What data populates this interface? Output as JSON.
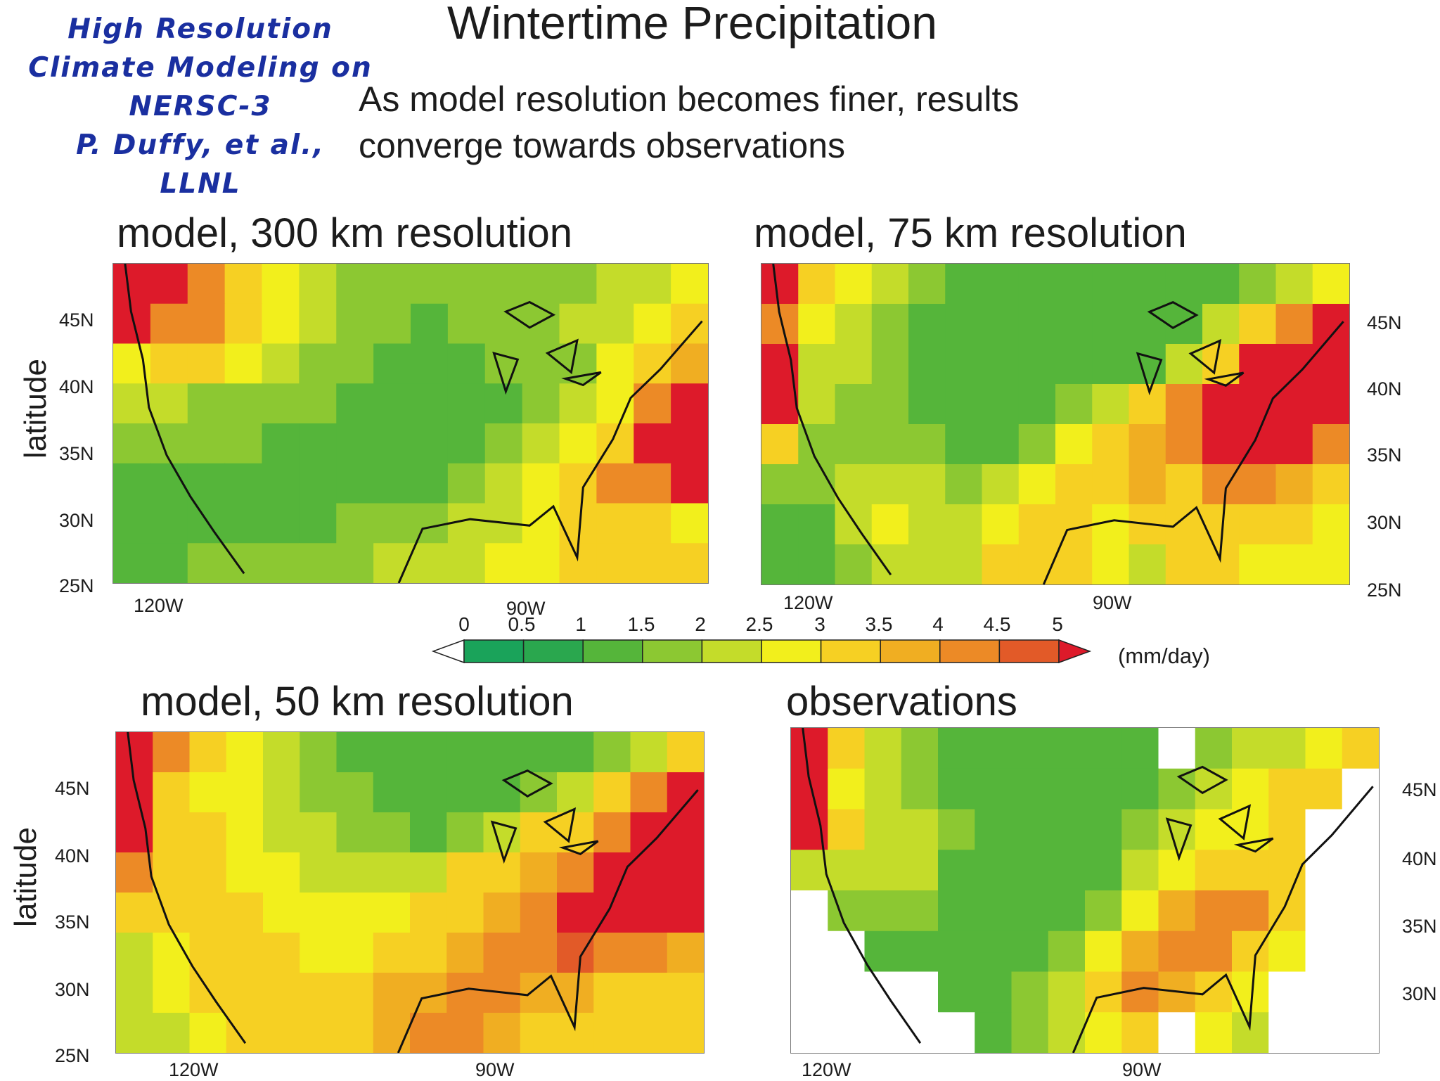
{
  "credit": {
    "lines": [
      "High Resolution",
      "Climate Modeling on",
      "NERSC-3",
      "P. Duffy, et al.,",
      "LLNL"
    ]
  },
  "title": "Wintertime Precipitation",
  "subtitle": {
    "line1": "As model resolution becomes finer, results",
    "line2": "converge towards observations"
  },
  "panels": [
    {
      "title": "model, 300 km resolution",
      "ylabel": "latitude",
      "lat_ticks": [
        "45N",
        "40N",
        "35N",
        "30N",
        "25N"
      ],
      "lon_ticks": [
        "120W",
        "90W"
      ]
    },
    {
      "title": "model, 75 km resolution",
      "ylabel": "",
      "lat_ticks": [
        "45N",
        "40N",
        "35N",
        "30N",
        "25N"
      ],
      "lon_ticks": [
        "120W",
        "90W"
      ]
    },
    {
      "title": "model, 50 km resolution",
      "ylabel": "latitude",
      "lat_ticks": [
        "45N",
        "40N",
        "35N",
        "30N",
        "25N"
      ],
      "lon_ticks": [
        "120W",
        "90W"
      ]
    },
    {
      "title": "observations",
      "ylabel": "",
      "lat_ticks": [
        "45N",
        "40N",
        "35N",
        "30N"
      ],
      "lon_ticks": [
        "120W",
        "90W"
      ]
    }
  ],
  "colorbar": {
    "units": "(mm/day)",
    "labels": [
      "0",
      "0.5",
      "1",
      "1.5",
      "2",
      "2.5",
      "3",
      "3.5",
      "4",
      "4.5",
      "5"
    ],
    "colors": [
      "#1aa35a",
      "#2aa74e",
      "#55b53a",
      "#8cc832",
      "#c4dc2a",
      "#f2ef1c",
      "#f6d023",
      "#f0ae22",
      "#ec8a26",
      "#e25a28",
      "#dd1a2a"
    ],
    "under_color": "#ffffff",
    "over_color": "#dd1a2a"
  },
  "chart_data": [
    {
      "type": "heatmap",
      "title": "model, 300 km resolution",
      "ylabel": "latitude",
      "xlim": [
        "125W",
        "75W"
      ],
      "ylim": [
        "25N",
        "49N"
      ],
      "x_ticks": [
        "120W",
        "90W"
      ],
      "y_ticks": [
        "45N",
        "40N",
        "35N",
        "30N",
        "25N"
      ],
      "units": "mm/day",
      "resolution_km": 300,
      "cells": [
        [
          5,
          5,
          4,
          3,
          2.5,
          2,
          1.5,
          1.5,
          1.5,
          1.5,
          1.5,
          1.5,
          1.5,
          2,
          2,
          2.5
        ],
        [
          5,
          4,
          4,
          3,
          2.5,
          2,
          1.5,
          1.5,
          1,
          1.5,
          1.5,
          1.5,
          2,
          2,
          2.5,
          3
        ],
        [
          2.5,
          3,
          3,
          2.5,
          2,
          1.5,
          1.5,
          1,
          1,
          1,
          1.5,
          1.5,
          1.5,
          2.5,
          3,
          3.5
        ],
        [
          2,
          2,
          1.5,
          1.5,
          1.5,
          1.5,
          1,
          1,
          1,
          1,
          1,
          1.5,
          2,
          2.5,
          4,
          5
        ],
        [
          1.5,
          1.5,
          1.5,
          1.5,
          1,
          1,
          1,
          1,
          1,
          1,
          1.5,
          2,
          2.5,
          3,
          5,
          5
        ],
        [
          1,
          1,
          1,
          1,
          1,
          1,
          1,
          1,
          1,
          1.5,
          2,
          2.5,
          3,
          4,
          4,
          5
        ],
        [
          1,
          1,
          1,
          1,
          1,
          1,
          1.5,
          1.5,
          1.5,
          2,
          2,
          2.5,
          3,
          3,
          3,
          2.5
        ],
        [
          1,
          1,
          1.5,
          1.5,
          1.5,
          1.5,
          1.5,
          2,
          2,
          2,
          2.5,
          2.5,
          3,
          3,
          3,
          3
        ]
      ]
    },
    {
      "type": "heatmap",
      "title": "model, 75 km resolution",
      "xlim": [
        "125W",
        "75W"
      ],
      "ylim": [
        "25N",
        "49N"
      ],
      "x_ticks": [
        "120W",
        "90W"
      ],
      "y_ticks": [
        "45N",
        "40N",
        "35N",
        "30N",
        "25N"
      ],
      "units": "mm/day",
      "resolution_km": 75,
      "cells": [
        [
          5,
          3,
          2.5,
          2,
          1.5,
          1,
          1,
          1,
          1,
          1,
          1,
          1,
          1,
          1.5,
          2,
          2.5
        ],
        [
          4,
          2.5,
          2,
          1.5,
          1,
          1,
          1,
          1,
          1,
          1,
          1,
          1,
          2,
          3,
          4,
          5
        ],
        [
          5,
          2,
          2,
          1.5,
          1,
          1,
          1,
          1,
          1,
          1,
          1,
          2,
          3,
          5,
          5,
          5
        ],
        [
          5,
          2,
          1.5,
          1.5,
          1,
          1,
          1,
          1,
          1.5,
          2,
          3,
          4,
          5,
          5,
          5,
          5
        ],
        [
          3,
          1.5,
          1.5,
          1.5,
          1.5,
          1,
          1,
          1.5,
          2.5,
          3,
          3.5,
          4,
          5,
          5,
          5,
          4
        ],
        [
          1.5,
          1.5,
          2,
          2,
          2,
          1.5,
          2,
          2.5,
          3,
          3,
          3.5,
          3,
          4,
          4,
          3.5,
          3
        ],
        [
          1,
          1,
          2,
          2.5,
          2,
          2,
          2.5,
          3,
          3,
          2.5,
          3,
          3,
          3,
          3,
          3,
          2.5
        ],
        [
          1,
          1,
          1.5,
          2,
          2,
          2,
          3,
          3,
          3,
          2.5,
          2,
          3,
          3,
          2.5,
          2.5,
          2.5
        ]
      ]
    },
    {
      "type": "heatmap",
      "title": "model, 50 km resolution",
      "ylabel": "latitude",
      "xlim": [
        "125W",
        "75W"
      ],
      "ylim": [
        "25N",
        "49N"
      ],
      "x_ticks": [
        "120W",
        "90W"
      ],
      "y_ticks": [
        "45N",
        "40N",
        "35N",
        "30N",
        "25N"
      ],
      "units": "mm/day",
      "resolution_km": 50,
      "cells": [
        [
          5,
          4,
          3,
          2.5,
          2,
          1.5,
          1,
          1,
          1,
          1,
          1,
          1,
          1,
          1.5,
          2,
          3
        ],
        [
          5,
          3,
          2.5,
          2.5,
          2,
          1.5,
          1.5,
          1,
          1,
          1,
          1,
          1.5,
          2,
          3,
          4,
          5
        ],
        [
          5,
          3,
          3,
          2.5,
          2,
          2,
          1.5,
          1.5,
          1,
          1.5,
          2,
          3,
          3,
          4,
          5,
          5
        ],
        [
          4,
          3,
          3,
          2.5,
          2.5,
          2,
          2,
          2,
          2,
          3,
          3,
          3.5,
          4,
          5,
          5,
          5
        ],
        [
          3,
          3,
          3,
          3,
          2.5,
          2.5,
          2.5,
          2.5,
          3,
          3,
          3.5,
          4,
          5,
          5,
          5,
          5
        ],
        [
          2,
          2.5,
          3,
          3,
          3,
          2.5,
          2.5,
          3,
          3,
          3.5,
          4,
          4,
          4.5,
          4,
          4,
          3.5
        ],
        [
          2,
          2.5,
          3,
          3,
          3,
          3,
          3,
          3.5,
          3.5,
          4,
          4,
          3.5,
          3.5,
          3,
          3,
          3
        ],
        [
          2,
          2,
          2.5,
          3,
          3,
          3,
          3,
          3.5,
          4,
          4,
          3.5,
          3,
          3,
          3,
          3,
          3
        ]
      ]
    },
    {
      "type": "heatmap",
      "title": "observations",
      "xlim": [
        "125W",
        "66W"
      ],
      "ylim": [
        "24N",
        "50N"
      ],
      "x_ticks": [
        "120W",
        "90W"
      ],
      "y_ticks": [
        "45N",
        "40N",
        "35N",
        "30N"
      ],
      "units": "mm/day",
      "cells": [
        [
          5,
          3,
          2,
          1.5,
          1,
          1,
          1,
          1,
          1,
          1,
          null,
          1.5,
          2,
          2,
          2.5,
          3
        ],
        [
          5,
          2.5,
          2,
          1.5,
          1,
          1,
          1,
          1,
          1,
          1,
          1.5,
          2,
          2.5,
          3,
          3,
          null
        ],
        [
          5,
          3,
          2,
          2,
          1.5,
          1,
          1,
          1,
          1,
          1.5,
          2,
          2.5,
          2.5,
          3,
          null,
          null
        ],
        [
          2,
          2,
          2,
          2,
          1,
          1,
          1,
          1,
          1,
          2,
          2.5,
          3,
          3,
          3,
          null,
          null
        ],
        [
          null,
          1.5,
          1.5,
          1.5,
          1,
          1,
          1,
          1,
          1.5,
          2.5,
          3.5,
          4,
          4,
          3,
          null,
          null
        ],
        [
          null,
          null,
          1,
          1,
          1,
          1,
          1,
          1.5,
          2.5,
          3.5,
          4,
          4,
          3,
          2.5,
          null,
          null
        ],
        [
          null,
          null,
          null,
          null,
          1,
          1,
          1.5,
          2,
          3,
          4,
          3.5,
          3,
          2.5,
          null,
          null,
          null
        ],
        [
          null,
          null,
          null,
          null,
          null,
          1,
          1.5,
          2,
          2.5,
          3,
          null,
          2.5,
          2,
          null,
          null,
          null
        ]
      ]
    }
  ]
}
